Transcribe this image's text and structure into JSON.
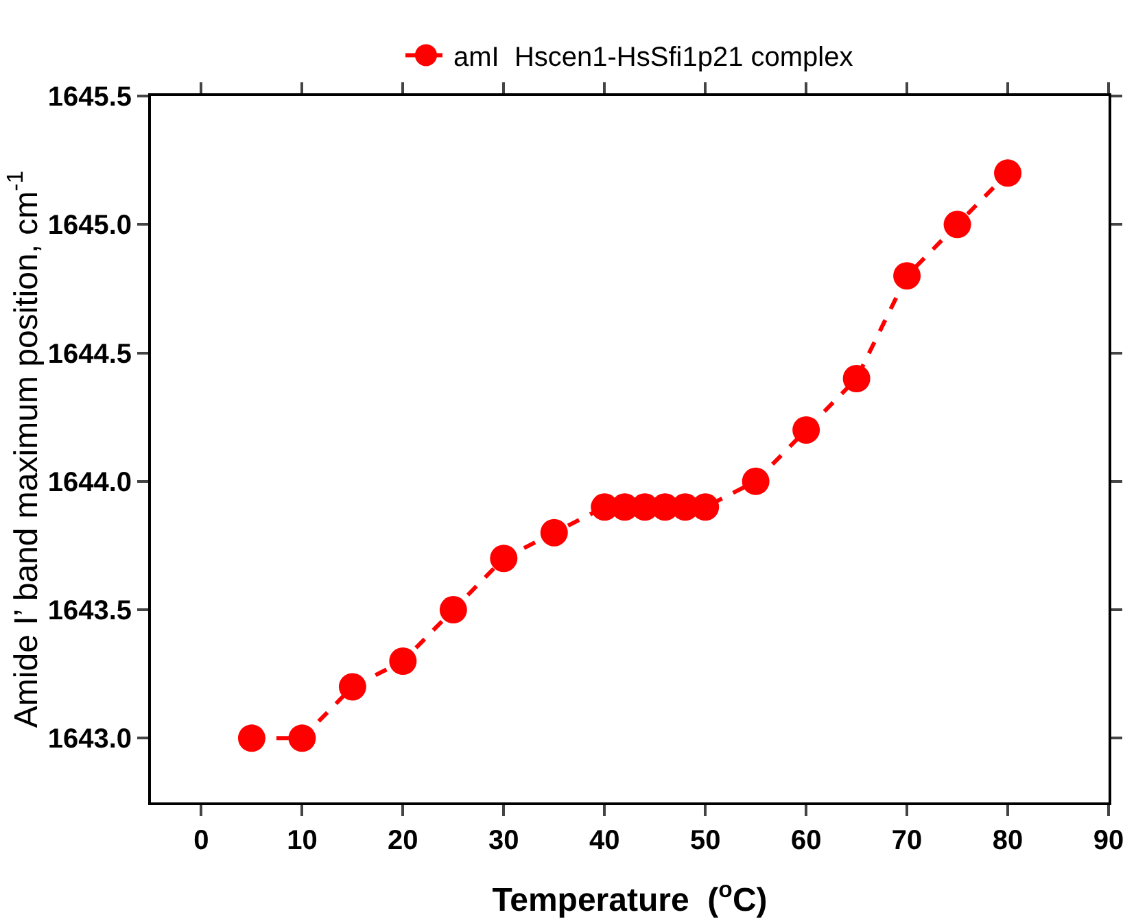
{
  "chart_data": {
    "type": "line",
    "xlabel": "Temperature  ($^{o}$C)",
    "ylabel": "Amide I’ band maximum position, cm$^{-1}$",
    "x": [
      5,
      10,
      15,
      20,
      25,
      30,
      35,
      40,
      42,
      44,
      46,
      48,
      50,
      55,
      60,
      65,
      70,
      75,
      80
    ],
    "series": [
      {
        "name": "amI  Hscen1-HsSfi1p21 complex",
        "color": "#ff0000",
        "values": [
          1643.0,
          1643.0,
          1643.2,
          1643.3,
          1643.5,
          1643.7,
          1643.8,
          1643.9,
          1643.9,
          1643.9,
          1643.9,
          1643.9,
          1643.9,
          1644.0,
          1644.2,
          1644.4,
          1644.8,
          1645.0,
          1645.2
        ]
      }
    ],
    "xlim": [
      -5,
      90
    ],
    "xticks": [
      0,
      10,
      20,
      30,
      40,
      50,
      60,
      70,
      80,
      90
    ],
    "ylim": [
      1642.75,
      1645.5
    ],
    "yticks": [
      {
        "value": 1643,
        "label": "1643.0"
      },
      {
        "value": 1643.5,
        "label": "1643.5"
      },
      {
        "value": 1644,
        "label": "1644.0"
      },
      {
        "value": 1644.5,
        "label": "1644.5"
      },
      {
        "value": 1645,
        "label": "1645.0"
      },
      {
        "value": 1645.5,
        "label": "1645.5"
      }
    ],
    "grid": false,
    "legend": "top",
    "marker": "circle",
    "line_style": "dashed"
  }
}
